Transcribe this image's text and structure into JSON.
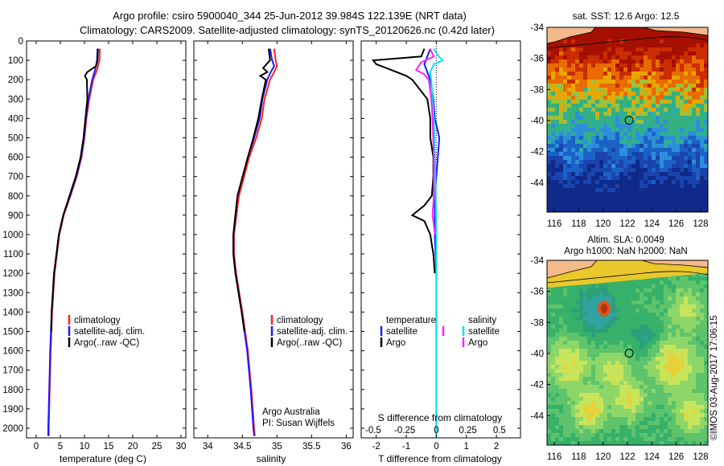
{
  "header": {
    "title_line1": "Argo profile: csiro 5900040_344 25-Jun-2012 39.984S 122.139E (NRT data)",
    "title_line2": "Climatology: CARS2009. Satellite-adjusted climatology: synTS_20120626.nc (0.42d later)"
  },
  "colors": {
    "climatology": "#ff2020",
    "satellite": "#1a1aff",
    "argo": "#000000",
    "salinity_satellite": "#00e8e8",
    "salinity_argo": "#ff22ff"
  },
  "depth_axis": {
    "ticks": [
      "0",
      "100",
      "200",
      "300",
      "400",
      "500",
      "600",
      "700",
      "800",
      "900",
      "1000",
      "1100",
      "1200",
      "1300",
      "1400",
      "1500",
      "1600",
      "1700",
      "1800",
      "1900",
      "2000"
    ],
    "range": [
      0,
      2050
    ]
  },
  "chart_data": [
    {
      "id": "temperature",
      "type": "line",
      "xlabel": "temperature (deg C)",
      "xlim": [
        -2,
        31
      ],
      "xticks": [
        "0",
        "5",
        "10",
        "15",
        "20",
        "25",
        "30"
      ],
      "ylim": [
        0,
        2050
      ],
      "legend": [
        "climatology",
        "satellite-adj. clim.",
        "Argo(..raw -QC)"
      ],
      "series": [
        {
          "name": "climatology",
          "depth": [
            40,
            100,
            150,
            200,
            300,
            400,
            500,
            600,
            700,
            800,
            900,
            1000,
            1200,
            1400,
            1600,
            1800,
            2000,
            2040
          ],
          "values": [
            13.2,
            13.1,
            12.6,
            11.8,
            11.0,
            10.4,
            10.0,
            9.4,
            8.4,
            7.1,
            5.7,
            4.8,
            3.8,
            3.3,
            3.0,
            2.8,
            2.6,
            2.6
          ]
        },
        {
          "name": "satellite-adj. clim.",
          "depth": [
            40,
            100,
            150,
            200,
            300,
            400,
            500,
            600,
            700,
            800,
            900,
            1000,
            1200,
            1400,
            1600,
            1800,
            2000,
            2040
          ],
          "values": [
            12.7,
            12.6,
            12.2,
            11.6,
            10.8,
            10.3,
            9.9,
            9.3,
            8.3,
            7.0,
            5.6,
            4.7,
            3.7,
            3.2,
            2.9,
            2.7,
            2.5,
            2.5
          ]
        },
        {
          "name": "Argo(..raw -QC)",
          "depth": [
            40,
            100,
            130,
            160,
            180,
            200,
            300,
            400,
            500,
            600,
            700,
            800,
            900,
            1000,
            1200,
            1400,
            1500
          ],
          "values": [
            12.8,
            12.7,
            12.4,
            10.6,
            10.1,
            10.5,
            10.6,
            10.2,
            9.8,
            9.2,
            8.2,
            6.9,
            5.6,
            4.7,
            3.7,
            3.2,
            3.1
          ]
        }
      ]
    },
    {
      "id": "salinity",
      "type": "line",
      "xlabel": "salinity",
      "xlim": [
        33.8,
        36.1
      ],
      "xticks": [
        "34",
        "34.5",
        "35",
        "35.5",
        "36"
      ],
      "ylim": [
        0,
        2050
      ],
      "legend": [
        "climatology",
        "satellite-adj. clim.",
        "Argo(..raw -QC)"
      ],
      "annotation_line1": "Argo Australia",
      "annotation_line2": "PI: Susan Wijffels",
      "series": [
        {
          "name": "climatology",
          "depth": [
            40,
            100,
            130,
            160,
            200,
            300,
            400,
            500,
            600,
            800,
            1000,
            1100,
            1200,
            1400,
            1600,
            1800,
            2000,
            2040
          ],
          "values": [
            34.96,
            34.98,
            35.0,
            34.96,
            34.9,
            34.82,
            34.78,
            34.7,
            34.6,
            34.45,
            34.38,
            34.38,
            34.41,
            34.5,
            34.58,
            34.63,
            34.67,
            34.68
          ]
        },
        {
          "name": "satellite-adj. clim.",
          "depth": [
            40,
            100,
            130,
            160,
            200,
            300,
            400,
            500,
            600,
            800,
            1000,
            1100,
            1200,
            1400,
            1600,
            1800,
            2000,
            2040
          ],
          "values": [
            34.9,
            34.93,
            34.96,
            34.91,
            34.86,
            34.79,
            34.75,
            34.67,
            34.58,
            34.43,
            34.37,
            34.37,
            34.4,
            34.49,
            34.57,
            34.62,
            34.66,
            34.67
          ]
        },
        {
          "name": "Argo(..raw -QC)",
          "depth": [
            40,
            100,
            140,
            160,
            180,
            200,
            300,
            400,
            500,
            600,
            800,
            1000,
            1100,
            1200,
            1400,
            1500
          ],
          "values": [
            34.88,
            34.9,
            34.8,
            34.86,
            34.76,
            34.84,
            34.78,
            34.73,
            34.66,
            34.58,
            34.43,
            34.37,
            34.37,
            34.4,
            34.49,
            34.53
          ]
        }
      ]
    },
    {
      "id": "differences",
      "type": "line",
      "xlabel": "T difference from climatology",
      "xlabel_top": "S difference from climatology",
      "xlim": [
        -2.5,
        2.8
      ],
      "xticks": [
        "-2",
        "-1",
        "0",
        "1",
        "2"
      ],
      "xticks_top": [
        "-0.5",
        "-0.25",
        "0",
        "0.25",
        "0.5"
      ],
      "ylim": [
        0,
        2050
      ],
      "legend_title_left": "temperature",
      "legend_title_right": "salinity",
      "legend_left": [
        "satellite",
        "Argo"
      ],
      "legend_right": [
        "satellite",
        "Argo"
      ],
      "series": [
        {
          "name": "temperature satellite",
          "depth": [
            40,
            80,
            120,
            160,
            200,
            300,
            400,
            500,
            600,
            800,
            1000,
            1200,
            1400,
            1600,
            1800,
            2000,
            2040
          ],
          "values": [
            -0.2,
            -0.3,
            -0.4,
            -0.3,
            -0.2,
            -0.1,
            -0.05,
            0.1,
            0.05,
            -0.05,
            -0.05,
            0,
            0,
            0,
            0,
            0,
            0
          ]
        },
        {
          "name": "temperature Argo",
          "depth": [
            40,
            80,
            100,
            120,
            150,
            180,
            200,
            300,
            400,
            500,
            600,
            700,
            800,
            850,
            900,
            930,
            1000,
            1100,
            1200
          ],
          "values": [
            -0.4,
            -0.5,
            -2.1,
            -2.0,
            -1.5,
            -1.0,
            -0.8,
            -0.3,
            -0.2,
            -0.2,
            -0.1,
            -0.1,
            -0.15,
            -0.4,
            -0.8,
            -0.4,
            -0.2,
            -0.1,
            -0.05
          ]
        },
        {
          "name": "salinity satellite",
          "depth": [
            40,
            80,
            100,
            120,
            160,
            200,
            300,
            400,
            600,
            1000,
            1400,
            2000,
            2040
          ],
          "values": [
            -0.02,
            0.02,
            0.05,
            -0.02,
            -0.05,
            -0.04,
            -0.03,
            -0.02,
            -0.01,
            0,
            0,
            0,
            0
          ]
        },
        {
          "name": "salinity Argo",
          "depth": [
            40,
            80,
            110,
            150,
            170,
            200,
            300,
            400,
            600,
            800,
            900,
            950,
            1000
          ],
          "values": [
            -0.05,
            -0.02,
            -0.12,
            -0.16,
            -0.1,
            -0.06,
            -0.04,
            -0.03,
            -0.02,
            -0.02,
            -0.03,
            -0.02,
            -0.01
          ]
        }
      ]
    },
    {
      "id": "sst_map",
      "type": "heatmap",
      "title": "sat. SST: 12.6 Argo: 12.5",
      "xticks": [
        "116",
        "118",
        "120",
        "122",
        "124",
        "126",
        "128"
      ],
      "yticks": [
        "-34",
        "-36",
        "-38",
        "-40",
        "-42",
        "-44"
      ],
      "lon_range": [
        115.4,
        128.6
      ],
      "lat_range": [
        -45.9,
        -34
      ],
      "argo_position": [
        122.139,
        -39.984
      ]
    },
    {
      "id": "sla_map",
      "type": "heatmap",
      "title_line1": "Altim. SLA: 0.0049",
      "title_line2": "Argo h1000: NaN h2000: NaN",
      "xticks": [
        "116",
        "118",
        "120",
        "122",
        "124",
        "126",
        "128"
      ],
      "yticks": [
        "-34",
        "-36",
        "-38",
        "-40",
        "-42",
        "-44"
      ],
      "lon_range": [
        115.4,
        128.6
      ],
      "lat_range": [
        -45.9,
        -34
      ],
      "argo_position": [
        122.139,
        -39.984
      ]
    }
  ],
  "footer": {
    "stamp": "©IMOS 03-Aug-2017 17:06:15"
  }
}
